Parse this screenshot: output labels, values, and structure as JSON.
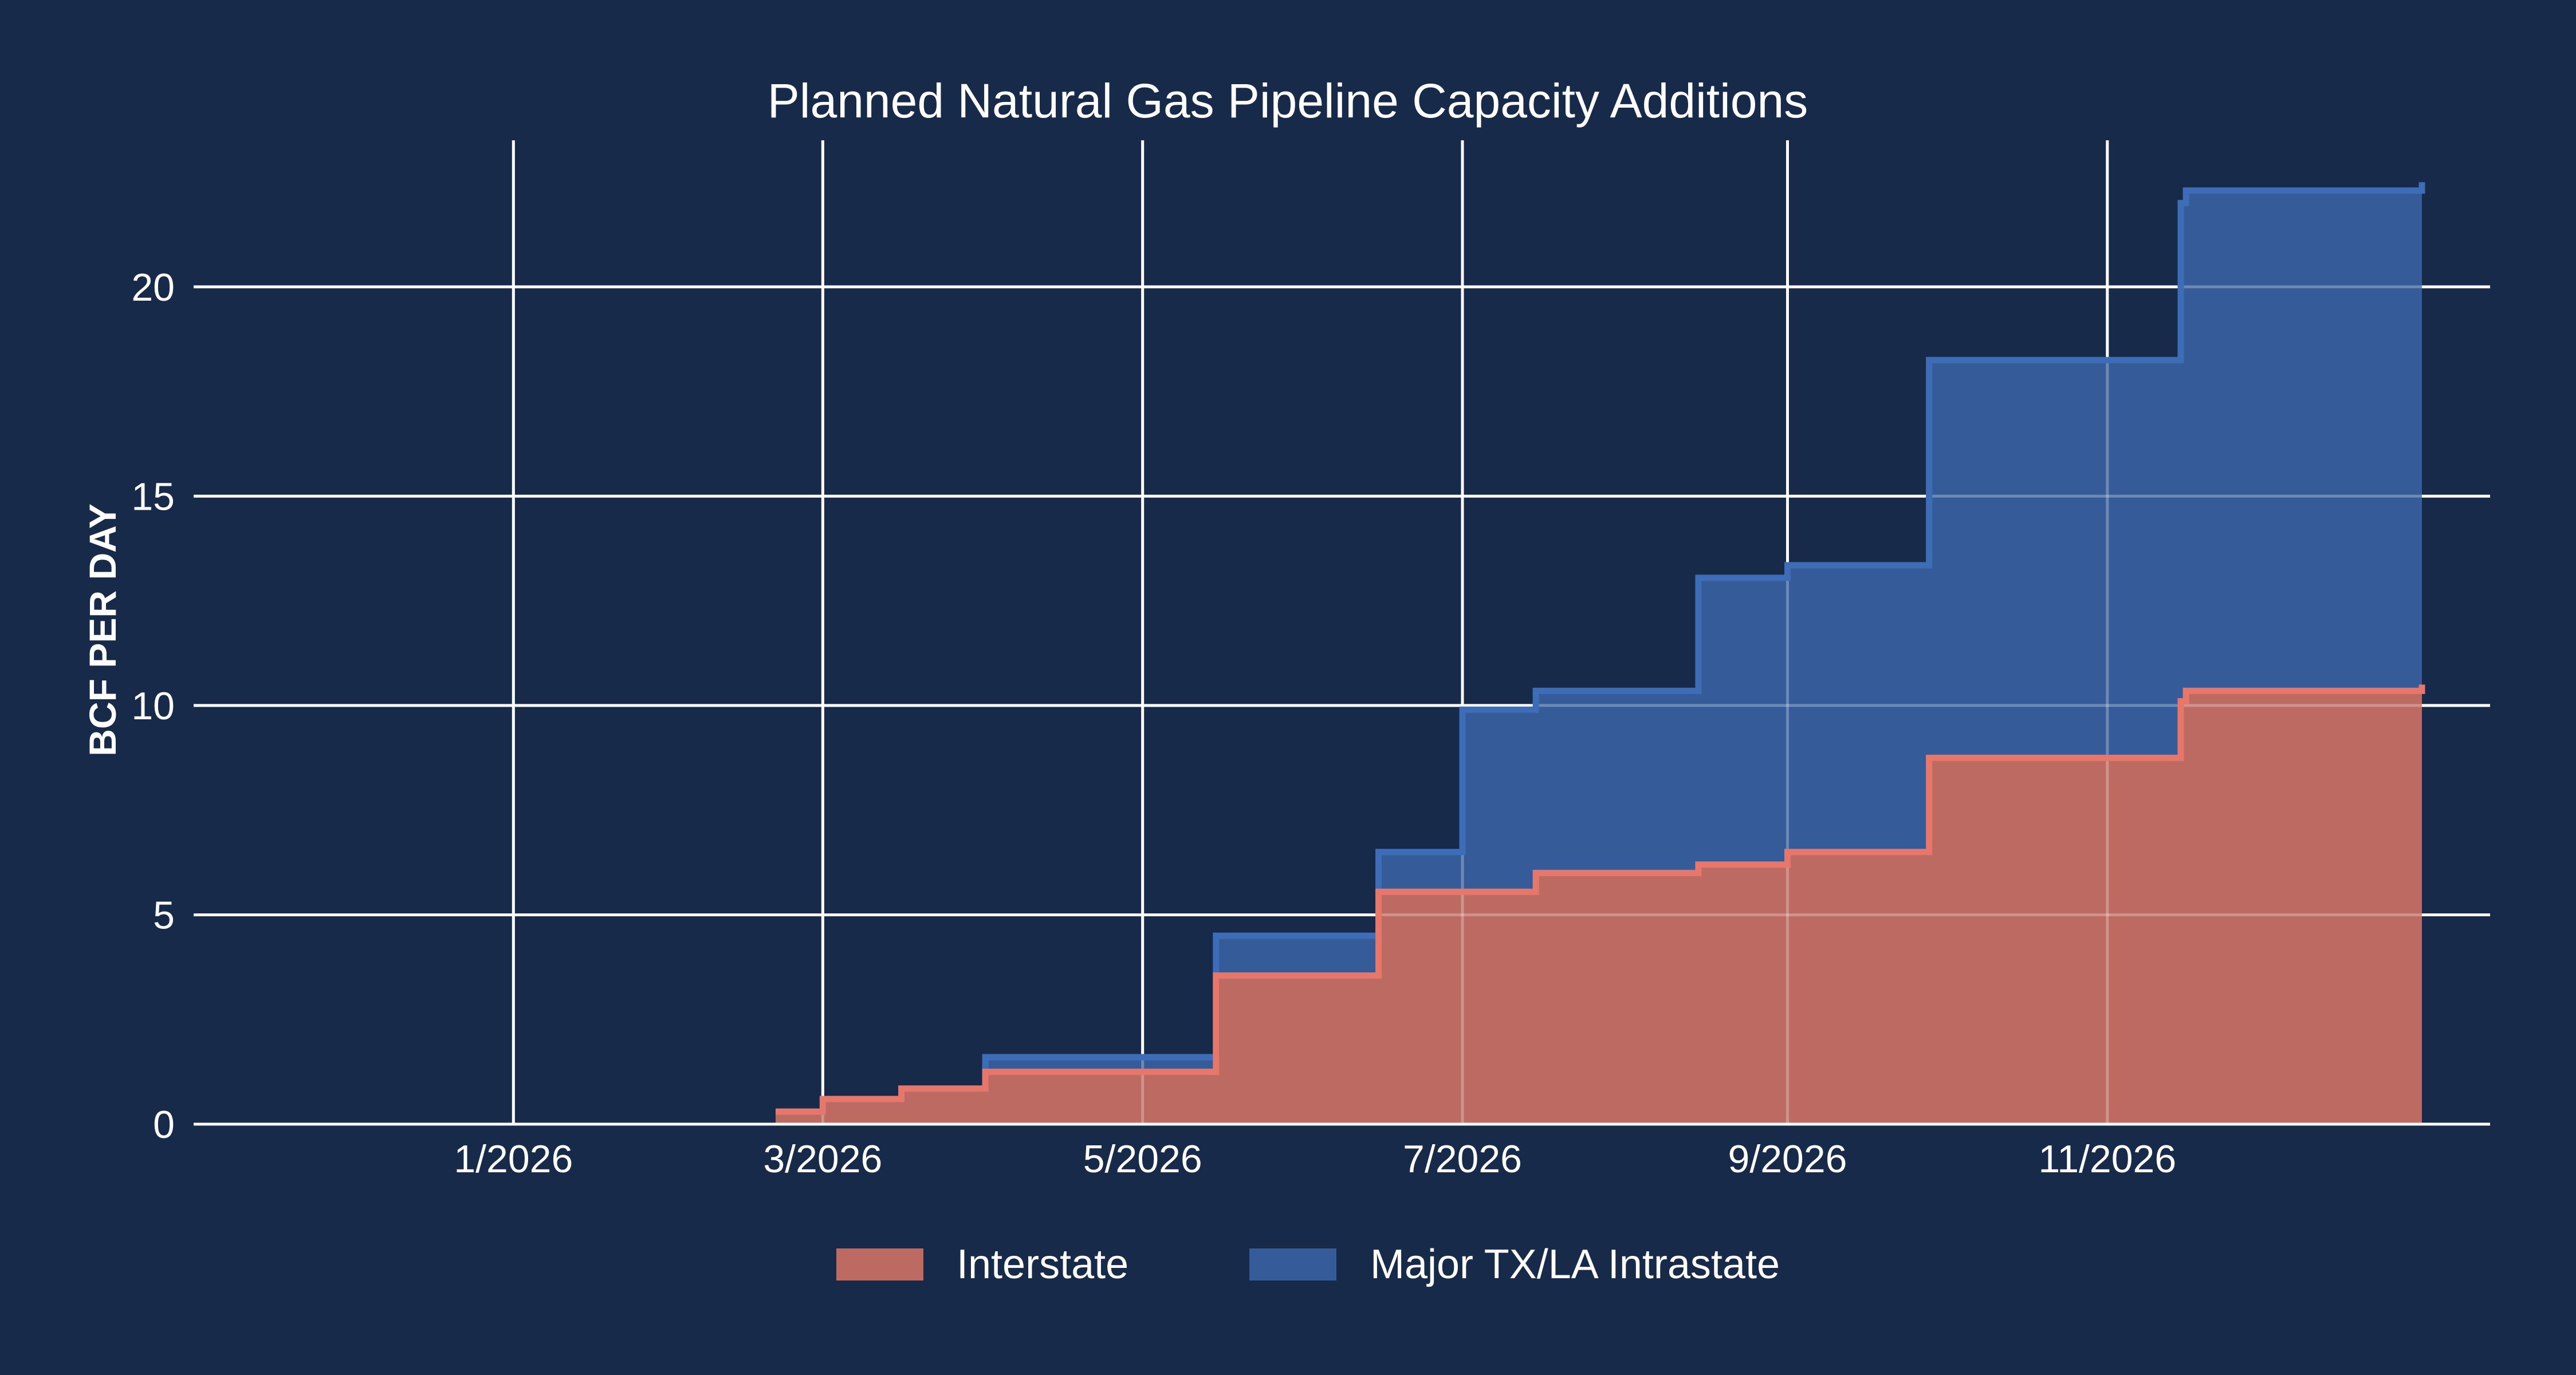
{
  "chart_data": {
    "type": "area",
    "step": true,
    "stacked": true,
    "title": "Planned Natural Gas Pipeline Capacity Additions",
    "xlabel": "",
    "ylabel": "BCF PER DAY",
    "x_ticks": [
      {
        "date": "2026-01-01",
        "label": "1/2026"
      },
      {
        "date": "2026-03-01",
        "label": "3/2026"
      },
      {
        "date": "2026-05-01",
        "label": "5/2026"
      },
      {
        "date": "2026-07-01",
        "label": "7/2026"
      },
      {
        "date": "2026-09-01",
        "label": "9/2026"
      },
      {
        "date": "2026-11-01",
        "label": "11/2026"
      }
    ],
    "xlim": [
      "2025-11-01",
      "2027-01-13"
    ],
    "y_ticks": [
      0,
      5,
      10,
      15,
      20
    ],
    "ylim": [
      0,
      23.5
    ],
    "grid": true,
    "legend_position": "bottom-center",
    "series": [
      {
        "name": "Interstate",
        "color": "#bd6a63",
        "edge_color": "#e8776b",
        "points": [
          {
            "x": "2026-02-20",
            "y": 0.3
          },
          {
            "x": "2026-03-01",
            "y": 0.6
          },
          {
            "x": "2026-03-16",
            "y": 0.85
          },
          {
            "x": "2026-04-01",
            "y": 1.25
          },
          {
            "x": "2026-05-15",
            "y": 3.55
          },
          {
            "x": "2026-06-15",
            "y": 5.55
          },
          {
            "x": "2026-07-15",
            "y": 6.0
          },
          {
            "x": "2026-08-15",
            "y": 6.2
          },
          {
            "x": "2026-09-01",
            "y": 6.5
          },
          {
            "x": "2026-09-28",
            "y": 8.75
          },
          {
            "x": "2026-11-15",
            "y": 10.1
          },
          {
            "x": "2026-11-16",
            "y": 10.35
          },
          {
            "x": "2026-12-31",
            "y": 10.5
          }
        ]
      },
      {
        "name": "Major TX/LA Intrastate",
        "color": "#355c99",
        "edge_color": "#3e6db8",
        "points": [
          {
            "x": "2026-02-20",
            "y": 0.3
          },
          {
            "x": "2026-03-01",
            "y": 0.6
          },
          {
            "x": "2026-03-16",
            "y": 0.85
          },
          {
            "x": "2026-04-01",
            "y": 1.6
          },
          {
            "x": "2026-05-15",
            "y": 4.5
          },
          {
            "x": "2026-06-15",
            "y": 6.5
          },
          {
            "x": "2026-07-01",
            "y": 9.9
          },
          {
            "x": "2026-07-15",
            "y": 10.35
          },
          {
            "x": "2026-08-15",
            "y": 13.05
          },
          {
            "x": "2026-09-01",
            "y": 13.35
          },
          {
            "x": "2026-09-28",
            "y": 18.25
          },
          {
            "x": "2026-11-15",
            "y": 22.0
          },
          {
            "x": "2026-11-16",
            "y": 22.3
          },
          {
            "x": "2026-12-31",
            "y": 22.5
          }
        ]
      }
    ]
  }
}
